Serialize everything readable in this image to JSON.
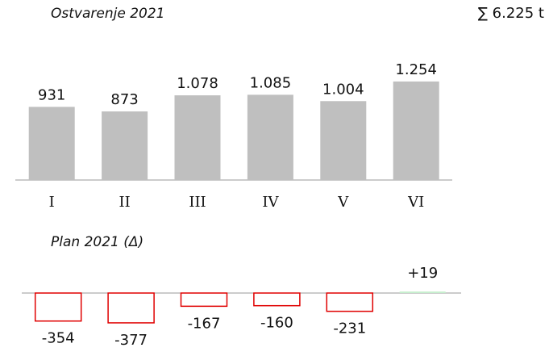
{
  "chart_data": [
    {
      "type": "bar",
      "title": "Ostvarenje 2021",
      "annotation": "∑ 6.225 t",
      "categories": [
        "I",
        "II",
        "III",
        "IV",
        "V",
        "VI"
      ],
      "values": [
        931,
        873,
        1078,
        1085,
        1004,
        1254
      ],
      "value_labels": [
        "931",
        "873",
        "1.078",
        "1.085",
        "1.004",
        "1.254"
      ],
      "color": "#bfbfbf",
      "ylim": [
        0,
        1500
      ]
    },
    {
      "type": "delta",
      "title": "Plan 2021 (Δ)",
      "values": [
        -354,
        -377,
        -167,
        -160,
        -231,
        19
      ],
      "value_labels": [
        "-354",
        "-377",
        "-167",
        "-160",
        "-231",
        "+19"
      ],
      "negative_color": "#e00000",
      "positive_color": "#c6efce",
      "ylim": [
        -500,
        500
      ]
    }
  ]
}
